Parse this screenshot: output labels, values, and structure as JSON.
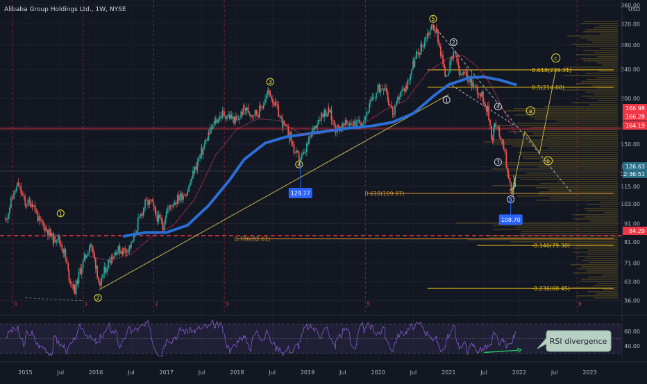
{
  "header": {
    "title": "Alibaba Group Holdings Ltd., 1W, NYSE"
  },
  "chart_data": {
    "type": "candlestick",
    "currency": "USD",
    "x_range": [
      2014.7,
      2023.3
    ],
    "y_range_log": [
      54,
      362
    ],
    "x_ticks": [
      {
        "label": "2015",
        "x": 2015.0
      },
      {
        "label": "Jul",
        "x": 2015.5
      },
      {
        "label": "2016",
        "x": 2016.0
      },
      {
        "label": "Jul",
        "x": 2016.5
      },
      {
        "label": "2017",
        "x": 2017.0
      },
      {
        "label": "Jul",
        "x": 2017.5
      },
      {
        "label": "2018",
        "x": 2018.0
      },
      {
        "label": "Jul",
        "x": 2018.5
      },
      {
        "label": "2019",
        "x": 2019.0
      },
      {
        "label": "Jul",
        "x": 2019.5
      },
      {
        "label": "2020",
        "x": 2020.0
      },
      {
        "label": "Jul",
        "x": 2020.5
      },
      {
        "label": "2021",
        "x": 2021.0
      },
      {
        "label": "Jul",
        "x": 2021.5
      },
      {
        "label": "2022",
        "x": 2022.0
      },
      {
        "label": "Jul",
        "x": 2022.5
      },
      {
        "label": "2023",
        "x": 2023.0
      }
    ],
    "y_ticks": [
      "360.00",
      "320.00",
      "280.00",
      "240.00",
      "200.00",
      "150.00",
      "130.00",
      "115.00",
      "103.00",
      "91.00",
      "81.00",
      "71.00",
      "63.00",
      "56.00"
    ],
    "y_tick_values": [
      360,
      320,
      280,
      240,
      200,
      150,
      130,
      115,
      103,
      91,
      81,
      71,
      63,
      56
    ],
    "price_path": [
      [
        2014.72,
        93
      ],
      [
        2014.82,
        108
      ],
      [
        2014.9,
        116
      ],
      [
        2015.0,
        103
      ],
      [
        2015.1,
        104
      ],
      [
        2015.2,
        92
      ],
      [
        2015.3,
        88
      ],
      [
        2015.4,
        82
      ],
      [
        2015.45,
        84
      ],
      [
        2015.5,
        80
      ],
      [
        2015.55,
        76
      ],
      [
        2015.62,
        65
      ],
      [
        2015.7,
        60
      ],
      [
        2015.78,
        68
      ],
      [
        2015.85,
        74
      ],
      [
        2015.92,
        80
      ],
      [
        2016.0,
        70
      ],
      [
        2016.06,
        60
      ],
      [
        2016.1,
        66
      ],
      [
        2016.2,
        73
      ],
      [
        2016.3,
        77
      ],
      [
        2016.4,
        77
      ],
      [
        2016.5,
        79
      ],
      [
        2016.6,
        92
      ],
      [
        2016.7,
        103
      ],
      [
        2016.78,
        104
      ],
      [
        2016.85,
        96
      ],
      [
        2016.95,
        90
      ],
      [
        2017.0,
        98
      ],
      [
        2017.1,
        104
      ],
      [
        2017.2,
        108
      ],
      [
        2017.3,
        112
      ],
      [
        2017.4,
        128
      ],
      [
        2017.5,
        143
      ],
      [
        2017.6,
        160
      ],
      [
        2017.7,
        174
      ],
      [
        2017.8,
        182
      ],
      [
        2017.9,
        178
      ],
      [
        2018.0,
        173
      ],
      [
        2018.1,
        188
      ],
      [
        2018.2,
        182
      ],
      [
        2018.3,
        183
      ],
      [
        2018.4,
        198
      ],
      [
        2018.45,
        210
      ],
      [
        2018.55,
        190
      ],
      [
        2018.65,
        170
      ],
      [
        2018.75,
        158
      ],
      [
        2018.82,
        142
      ],
      [
        2018.88,
        137
      ],
      [
        2018.95,
        140
      ],
      [
        2019.0,
        150
      ],
      [
        2019.1,
        168
      ],
      [
        2019.2,
        182
      ],
      [
        2019.3,
        185
      ],
      [
        2019.4,
        165
      ],
      [
        2019.5,
        168
      ],
      [
        2019.6,
        172
      ],
      [
        2019.7,
        170
      ],
      [
        2019.8,
        176
      ],
      [
        2019.9,
        195
      ],
      [
        2020.0,
        212
      ],
      [
        2020.1,
        218
      ],
      [
        2020.15,
        196
      ],
      [
        2020.22,
        180
      ],
      [
        2020.3,
        204
      ],
      [
        2020.4,
        216
      ],
      [
        2020.5,
        250
      ],
      [
        2020.55,
        262
      ],
      [
        2020.62,
        278
      ],
      [
        2020.7,
        300
      ],
      [
        2020.77,
        316
      ],
      [
        2020.83,
        304
      ],
      [
        2020.9,
        260
      ],
      [
        2020.95,
        232
      ],
      [
        2021.0,
        240
      ],
      [
        2021.05,
        258
      ],
      [
        2021.1,
        266
      ],
      [
        2021.15,
        232
      ],
      [
        2021.25,
        232
      ],
      [
        2021.35,
        218
      ],
      [
        2021.45,
        206
      ],
      [
        2021.5,
        198
      ],
      [
        2021.55,
        186
      ],
      [
        2021.62,
        155
      ],
      [
        2021.65,
        170
      ],
      [
        2021.72,
        160
      ],
      [
        2021.78,
        150
      ],
      [
        2021.85,
        120
      ],
      [
        2021.9,
        110
      ],
      [
        2021.93,
        116
      ],
      [
        2021.96,
        127
      ]
    ],
    "series": [
      {
        "name": "MA-blue",
        "color": "#2b6fd6",
        "points": [
          [
            2016.4,
            84
          ],
          [
            2016.7,
            86
          ],
          [
            2017.0,
            86
          ],
          [
            2017.3,
            90
          ],
          [
            2017.6,
            102
          ],
          [
            2017.9,
            120
          ],
          [
            2018.1,
            136
          ],
          [
            2018.4,
            151
          ],
          [
            2018.7,
            157
          ],
          [
            2019.0,
            160
          ],
          [
            2019.3,
            163
          ],
          [
            2019.6,
            166
          ],
          [
            2019.9,
            168
          ],
          [
            2020.2,
            172
          ],
          [
            2020.5,
            182
          ],
          [
            2020.8,
            204
          ],
          [
            2021.0,
            218
          ],
          [
            2021.3,
            228
          ],
          [
            2021.5,
            229
          ],
          [
            2021.75,
            224
          ],
          [
            2021.95,
            218
          ]
        ]
      },
      {
        "name": "MA-red",
        "color": "#d6335e",
        "points": [
          [
            2015.9,
            74
          ],
          [
            2016.2,
            72
          ],
          [
            2016.5,
            75
          ],
          [
            2016.8,
            84
          ],
          [
            2017.1,
            90
          ],
          [
            2017.4,
            106
          ],
          [
            2017.7,
            140
          ],
          [
            2018.0,
            165
          ],
          [
            2018.3,
            176
          ],
          [
            2018.6,
            174
          ],
          [
            2018.9,
            160
          ],
          [
            2019.2,
            160
          ],
          [
            2019.5,
            168
          ],
          [
            2019.8,
            171
          ],
          [
            2020.1,
            186
          ],
          [
            2020.4,
            198
          ],
          [
            2020.7,
            236
          ],
          [
            2021.0,
            258
          ],
          [
            2021.2,
            262
          ],
          [
            2021.4,
            245
          ],
          [
            2021.6,
            218
          ],
          [
            2021.8,
            182
          ],
          [
            2021.95,
            160
          ]
        ]
      }
    ],
    "horizontal_levels": [
      {
        "label": "0.618(239.31)",
        "value": 239.31,
        "color": "#f0c419",
        "x_start": 2020.7
      },
      {
        "label": "0.5(214.60)",
        "value": 214.6,
        "color": "#f0c419",
        "x_start": 2020.7
      },
      {
        "label": "0.618(109.97)",
        "value": 109.97,
        "color": "#e0962a",
        "x_start": 2019.85
      },
      {
        "label": "0.786(82.61)",
        "value": 82.61,
        "color": "#e0962a",
        "x_start": 2018.0
      },
      {
        "label": "-0.146(79.30)",
        "value": 79.3,
        "color": "#f0c419",
        "x_start": 2021.4
      },
      {
        "label": "-0.236(60.45)",
        "value": 60.45,
        "color": "#f0c419",
        "x_start": 2020.7
      }
    ],
    "price_tags": [
      {
        "label": "166.98",
        "value": 166.98,
        "color": "#f23645"
      },
      {
        "label": "166.28",
        "value": 166.28,
        "color": "#f23645"
      },
      {
        "label": "164.19",
        "value": 164.19,
        "color": "#f23645"
      },
      {
        "label": "126.63",
        "value": 126.63,
        "color": "#2b6f86"
      },
      {
        "label": "12:36:51",
        "value": 124.5,
        "color": "#2b6f86"
      },
      {
        "label": "84.29",
        "value": 84.29,
        "color": "#f23645"
      }
    ],
    "callouts": [
      {
        "label": "129.77",
        "x": 2018.9,
        "y": 137,
        "box_y": 110
      },
      {
        "label": "108.70",
        "x": 2021.88,
        "y": 110,
        "box_y": 93
      }
    ],
    "elliott_waves_primary": [
      {
        "label": "5",
        "x": 2020.78,
        "y": 330
      },
      {
        "label": "3",
        "x": 2018.47,
        "y": 222
      },
      {
        "label": "4",
        "x": 2018.88,
        "y": 132
      },
      {
        "label": "1",
        "x": 2015.5,
        "y": 97
      },
      {
        "label": "2",
        "x": 2016.03,
        "y": 57
      }
    ],
    "elliott_waves_minor": [
      {
        "label": "2",
        "x": 2021.07,
        "y": 285
      },
      {
        "label": "1",
        "x": 2020.97,
        "y": 198
      },
      {
        "label": "4",
        "x": 2021.7,
        "y": 190
      },
      {
        "label": "3",
        "x": 2021.7,
        "y": 134
      },
      {
        "label": "5",
        "x": 2021.88,
        "y": 106
      }
    ],
    "abc_projection": [
      {
        "label": "a",
        "x": 2022.16,
        "y": 185
      },
      {
        "label": "b",
        "x": 2022.41,
        "y": 135
      },
      {
        "label": "c",
        "x": 2022.52,
        "y": 258
      }
    ],
    "cycle_markers": [
      {
        "label": "0",
        "x": 2014.82
      },
      {
        "label": "1",
        "x": 2015.82
      },
      {
        "label": "2",
        "x": 2016.82
      },
      {
        "label": "3",
        "x": 2017.82
      },
      {
        "label": "5",
        "x": 2019.82
      },
      {
        "label": "8",
        "x": 2022.82
      }
    ],
    "rsi": {
      "annotation": "RSI divergence",
      "y_ticks": [
        "60.00",
        "40.00"
      ],
      "y_tick_values": [
        60,
        40
      ],
      "levels": [
        70,
        50,
        30
      ]
    }
  }
}
